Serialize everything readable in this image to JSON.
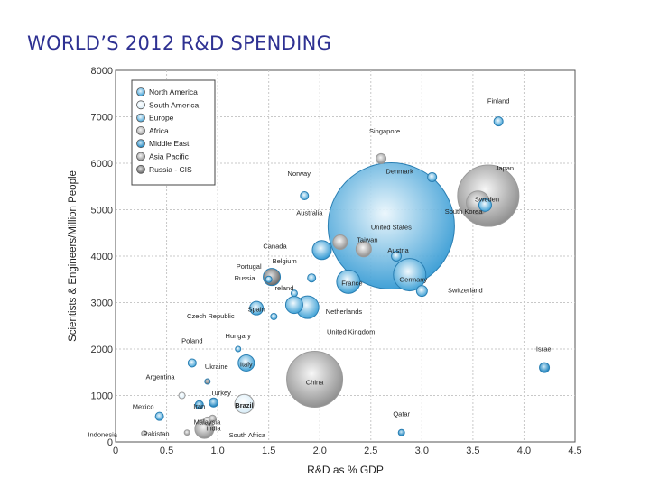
{
  "slide": {
    "title": "WORLD’S 2012 R&D SPENDING"
  },
  "chart_data": {
    "type": "scatter",
    "variant": "bubble",
    "title": "WORLD’S 2012 R&D SPENDING",
    "xlabel": "R&D as % GDP",
    "ylabel": "Scientists & Engineers/Million People",
    "xlim": [
      0,
      4.5
    ],
    "ylim": [
      0,
      8000
    ],
    "xticks": [
      "0",
      "0.5",
      "1.0",
      "1.5",
      "2.0",
      "2.5",
      "3.0",
      "3.5",
      "4.0",
      "4.5"
    ],
    "yticks": [
      "0",
      "1000",
      "2000",
      "3000",
      "4000",
      "5000",
      "6000",
      "7000",
      "8000"
    ],
    "grid": true,
    "legend_position": "top-left",
    "size_note": "bubble size = relative total R&D spending",
    "legend": [
      {
        "name": "North America",
        "color": "#3d9fd6"
      },
      {
        "name": "South America",
        "color": "#e9f4fa"
      },
      {
        "name": "Europe",
        "color": "#a8d4ec"
      },
      {
        "name": "Africa",
        "color": "#d9d9d9"
      },
      {
        "name": "Middle East",
        "color": "#1686c4"
      },
      {
        "name": "Asia Pacific",
        "color": "#e5e5e5"
      },
      {
        "name": "Russia - CIS",
        "color": "#9a9a9a"
      }
    ],
    "points": [
      {
        "label": "United States",
        "x": 2.7,
        "y": 4650,
        "size": 140,
        "region": "North America"
      },
      {
        "label": "China",
        "x": 1.95,
        "y": 1350,
        "size": 62,
        "region": "Asia Pacific"
      },
      {
        "label": "Japan",
        "x": 3.65,
        "y": 5300,
        "size": 68,
        "region": "Asia Pacific"
      },
      {
        "label": "South Korea",
        "x": 3.55,
        "y": 5150,
        "size": 26,
        "region": "Asia Pacific"
      },
      {
        "label": "Germany",
        "x": 2.88,
        "y": 3600,
        "size": 36,
        "region": "Europe"
      },
      {
        "label": "France",
        "x": 2.28,
        "y": 3450,
        "size": 26,
        "region": "Europe"
      },
      {
        "label": "United Kingdom",
        "x": 1.88,
        "y": 2900,
        "size": 25,
        "region": "Europe"
      },
      {
        "label": "Netherlands",
        "x": 1.75,
        "y": 2950,
        "size": 19,
        "region": "Europe"
      },
      {
        "label": "Russia",
        "x": 1.53,
        "y": 3550,
        "size": 19,
        "region": "Russia - CIS"
      },
      {
        "label": "Canada",
        "x": 2.02,
        "y": 4130,
        "size": 21,
        "region": "North America"
      },
      {
        "label": "Taiwan",
        "x": 2.43,
        "y": 4150,
        "size": 17,
        "region": "Asia Pacific"
      },
      {
        "label": "Brazil",
        "x": 1.26,
        "y": 820,
        "size": 21,
        "region": "South America"
      },
      {
        "label": "India",
        "x": 0.87,
        "y": 280,
        "size": 21,
        "region": "Asia Pacific"
      },
      {
        "label": "Italy",
        "x": 1.28,
        "y": 1700,
        "size": 18,
        "region": "Europe"
      },
      {
        "label": "Spain",
        "x": 1.38,
        "y": 2880,
        "size": 15,
        "region": "Europe"
      },
      {
        "label": "Sweden",
        "x": 3.62,
        "y": 5100,
        "size": 14,
        "region": "Europe"
      },
      {
        "label": "Switzerland",
        "x": 3.0,
        "y": 3250,
        "size": 12,
        "region": "Europe"
      },
      {
        "label": "Austria",
        "x": 2.75,
        "y": 4000,
        "size": 11,
        "region": "Europe"
      },
      {
        "label": "Belgium",
        "x": 1.92,
        "y": 3530,
        "size": 9,
        "region": "Europe"
      },
      {
        "label": "Denmark",
        "x": 3.1,
        "y": 5700,
        "size": 10,
        "region": "Europe"
      },
      {
        "label": "Finland",
        "x": 3.75,
        "y": 6900,
        "size": 10,
        "region": "Europe"
      },
      {
        "label": "Norway",
        "x": 1.85,
        "y": 5300,
        "size": 9,
        "region": "Europe"
      },
      {
        "label": "Singapore",
        "x": 2.6,
        "y": 6100,
        "size": 11,
        "region": "Asia Pacific"
      },
      {
        "label": "Australia",
        "x": 2.2,
        "y": 4300,
        "size": 16,
        "region": "Asia Pacific"
      },
      {
        "label": "Portugal",
        "x": 1.5,
        "y": 3500,
        "size": 7,
        "region": "Europe"
      },
      {
        "label": "Ireland",
        "x": 1.75,
        "y": 3200,
        "size": 7,
        "region": "Europe"
      },
      {
        "label": "Czech Republic",
        "x": 1.55,
        "y": 2700,
        "size": 7,
        "region": "Europe"
      },
      {
        "label": "Poland",
        "x": 0.75,
        "y": 1700,
        "size": 9,
        "region": "Europe"
      },
      {
        "label": "Hungary",
        "x": 1.2,
        "y": 2000,
        "size": 6,
        "region": "Europe"
      },
      {
        "label": "Ukraine",
        "x": 0.9,
        "y": 1300,
        "size": 6,
        "region": "Russia - CIS"
      },
      {
        "label": "Argentina",
        "x": 0.65,
        "y": 1000,
        "size": 7,
        "region": "South America"
      },
      {
        "label": "Turkey",
        "x": 0.96,
        "y": 850,
        "size": 10,
        "region": "Middle East"
      },
      {
        "label": "Iran",
        "x": 0.82,
        "y": 800,
        "size": 9,
        "region": "Middle East"
      },
      {
        "label": "Mexico",
        "x": 0.43,
        "y": 550,
        "size": 9,
        "region": "North America"
      },
      {
        "label": "Malaysia",
        "x": 0.95,
        "y": 500,
        "size": 8,
        "region": "Asia Pacific"
      },
      {
        "label": "South Africa",
        "x": 0.9,
        "y": 450,
        "size": 9,
        "region": "Africa"
      },
      {
        "label": "Pakistan",
        "x": 0.7,
        "y": 200,
        "size": 6,
        "region": "Asia Pacific"
      },
      {
        "label": "Indonesia",
        "x": 0.28,
        "y": 180,
        "size": 6,
        "region": "Asia Pacific"
      },
      {
        "label": "Israel",
        "x": 4.2,
        "y": 1600,
        "size": 11,
        "region": "Middle East"
      },
      {
        "label": "Qatar",
        "x": 2.8,
        "y": 200,
        "size": 7,
        "region": "Middle East"
      }
    ]
  }
}
